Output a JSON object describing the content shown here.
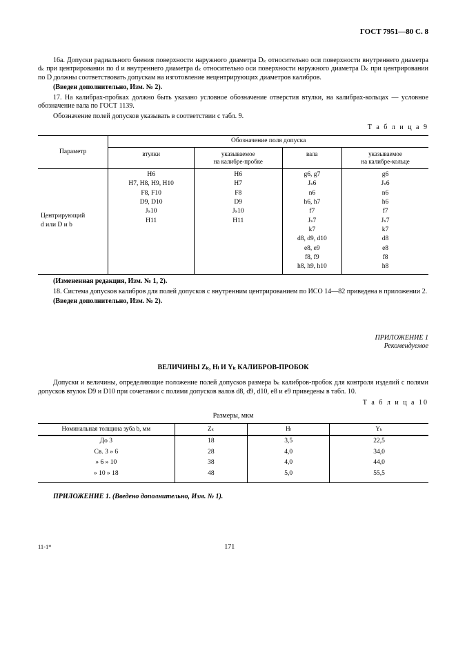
{
  "header": "ГОСТ 7951—80 С. 8",
  "para16a": "16а. Допуски радиального биения поверхности наружного диаметра Dₖ относительно оси поверхности внутреннего диаметра dₖ при центрировании по d и внутреннего диаметра dₖ относительно оси поверхности наружного диаметра Dₖ при центрировании по D должны соответствовать допускам на изготовление нецентрирующих диаметров калибров.",
  "addnote1": "(Введен дополнительно, Изм. № 2).",
  "para17": "17. На калибрах-пробках должно быть указано условное обозначение отверстия втулки, на калибрах-кольцах — условное обозначение вала по ГОСТ 1139.",
  "para17b": "Обозначение полей допусков указывать в соответствии с табл. 9.",
  "table9_label": "Т а б л и ц а   9",
  "t9": {
    "param_header": "Параметр",
    "group_header": "Обозначение поля допуска",
    "cols": [
      "втулки",
      "указываемое\nна калибре-пробке",
      "вала",
      "указываемое\nна калибре-кольце"
    ],
    "param_text": "Центрирующий\nd или D и b",
    "col1": [
      "H6",
      "H7, H8, H9, H10",
      "F8, F10",
      "D9, D10",
      "Jₛ10",
      "H11",
      "",
      "",
      "",
      "",
      ""
    ],
    "col2": [
      "H6",
      "H7",
      "F8",
      "D9",
      "Jₛ10",
      "H11",
      "",
      "",
      "",
      "",
      ""
    ],
    "col3": [
      "g6, g7",
      "Jₛ6",
      "n6",
      "h6, h7",
      "f7",
      "Jₛ7",
      "k7",
      "d8, d9, d10",
      "e8, e9",
      "f8, f9",
      "h8, h9, h10"
    ],
    "col4": [
      "g6",
      "Jₛ6",
      "n6",
      "h6",
      "f7",
      "Jₛ7",
      "k7",
      "d8",
      "e8",
      "f8",
      "h8"
    ]
  },
  "changed_note": "(Измененная редакция, Изм. № 1, 2).",
  "para18": "18. Система допусков калибров для полей допусков с внутренним центрированием по ИСО 14—82 приведена в приложении 2.",
  "addnote2": "(Введен дополнительно, Изм. № 2).",
  "appendix_title": "ПРИЛОЖЕНИЕ 1",
  "appendix_sub": "Рекомендуемое",
  "values_title": "ВЕЛИЧИНЫ Zₖ, Hₗ И Yₖ КАЛИБРОВ-ПРОБОК",
  "para_app": "Допуски и величины, определяющие положение полей допусков размера bₖ калибров-пробок для контроля изделий с полями допусков втулок D9 и D10 при сочетании с полями допусков валов d8, d9, d10, e8 и e9 приведены в табл. 10.",
  "table10_label": "Т а б л и ц а   10",
  "sizes_label": "Размеры, мкм",
  "t10": {
    "headers": [
      "Номинальная толщина зуба b, мм",
      "Zₖ",
      "Hₗ",
      "Yₖ"
    ],
    "rows": [
      [
        "До 3",
        "18",
        "3,5",
        "22,5"
      ],
      [
        "Св. 3  »  6",
        "28",
        "4,0",
        "34,0"
      ],
      [
        "»  6  » 10",
        "38",
        "4,0",
        "44,0"
      ],
      [
        "» 10  » 18",
        "48",
        "5,0",
        "55,5"
      ]
    ]
  },
  "app_footer": "ПРИЛОЖЕНИЕ 1. (Введено дополнительно, Изм. № 1).",
  "footleft": "11-1*",
  "pagenum": "171"
}
